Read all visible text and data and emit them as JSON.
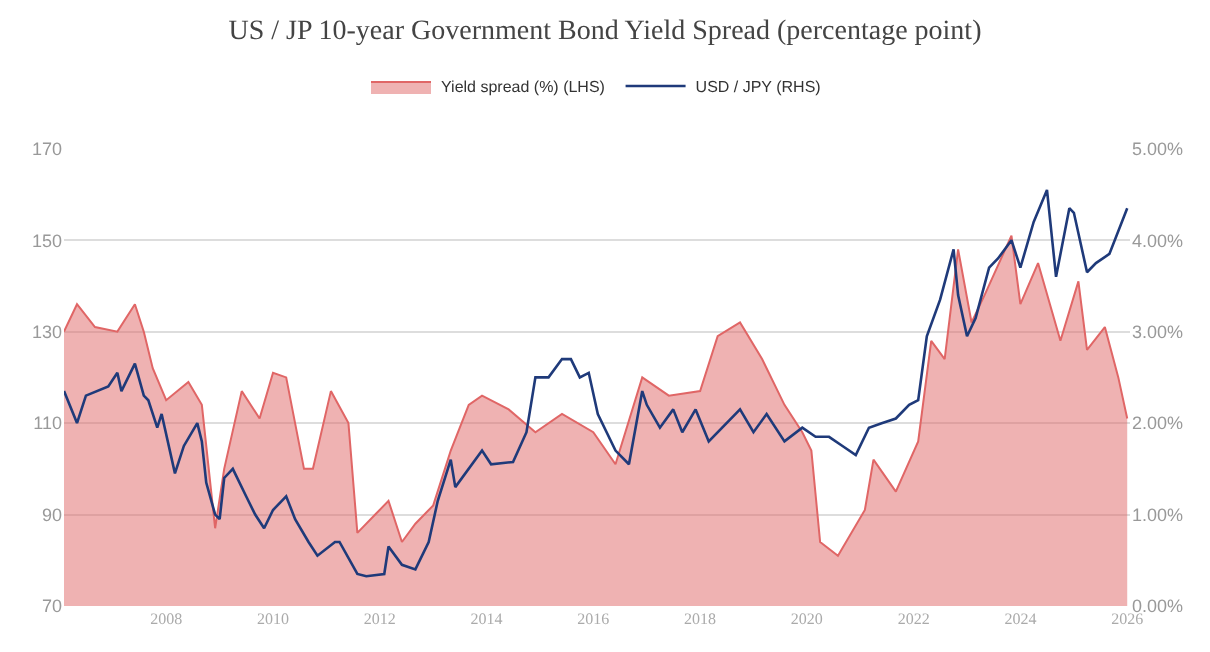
{
  "chart_data": {
    "type": "line",
    "title": "US / JP 10-year Government Bond Yield Spread (percentage point)",
    "xlim": [
      "2006-02-01",
      "2026-01-20"
    ],
    "xticks": [
      {
        "value": "2008-01-01",
        "label": "2008"
      },
      {
        "value": "2010-01-01",
        "label": "2010"
      },
      {
        "value": "2012-01-01",
        "label": "2012"
      },
      {
        "value": "2014-01-01",
        "label": "2014"
      },
      {
        "value": "2016-01-01",
        "label": "2016"
      },
      {
        "value": "2018-01-01",
        "label": "2018"
      },
      {
        "value": "2020-01-01",
        "label": "2020"
      },
      {
        "value": "2022-01-01",
        "label": "2022"
      },
      {
        "value": "2024-01-01",
        "label": "2024"
      },
      {
        "value": "2026-01-01",
        "label": "2026"
      }
    ],
    "ylim": [
      70,
      170
    ],
    "yticks": [
      70,
      90,
      110,
      130,
      150,
      170
    ],
    "y2lim": [
      0,
      5
    ],
    "y2ticks": [
      {
        "value": 0,
        "label": "0.00%"
      },
      {
        "value": 1,
        "label": "1.00%"
      },
      {
        "value": 2,
        "label": "2.00%"
      },
      {
        "value": 3,
        "label": "3.00%"
      },
      {
        "value": 4,
        "label": "4.00%"
      },
      {
        "value": 5,
        "label": "5.00%"
      }
    ],
    "grid": "y",
    "legend": "top",
    "series": [
      {
        "name": "Yield spread (%) (LHS)",
        "type": "area",
        "axis": "y2",
        "color": "#e06666",
        "x": [
          "2006-02",
          "2006-05",
          "2006-09",
          "2007-02",
          "2007-06",
          "2007-08",
          "2007-10",
          "2008-01",
          "2008-06",
          "2008-09",
          "2008-12",
          "2009-02",
          "2009-06",
          "2009-10",
          "2010-01",
          "2010-04",
          "2010-08",
          "2010-10",
          "2011-02",
          "2011-06",
          "2011-08",
          "2011-12",
          "2012-03",
          "2012-06",
          "2012-09",
          "2013-01",
          "2013-05",
          "2013-09",
          "2013-12",
          "2014-06",
          "2014-12",
          "2015-06",
          "2016-01",
          "2016-06",
          "2016-12",
          "2017-06",
          "2018-01",
          "2018-05",
          "2018-10",
          "2019-03",
          "2019-08",
          "2019-12",
          "2020-02",
          "2020-04",
          "2020-08",
          "2021-02",
          "2021-04",
          "2021-09",
          "2022-02",
          "2022-05",
          "2022-08",
          "2022-11",
          "2023-02",
          "2023-05",
          "2023-11",
          "2024-01",
          "2024-05",
          "2024-10",
          "2025-02",
          "2025-04",
          "2025-08",
          "2025-11",
          "2026-01"
        ],
        "values": [
          3.0,
          3.3,
          3.05,
          3.0,
          3.3,
          3.0,
          2.6,
          2.25,
          2.45,
          2.2,
          0.85,
          1.5,
          2.35,
          2.05,
          2.55,
          2.5,
          1.5,
          1.5,
          2.35,
          2.0,
          0.8,
          1.0,
          1.15,
          0.7,
          0.9,
          1.1,
          1.7,
          2.2,
          2.3,
          2.15,
          1.9,
          2.1,
          1.9,
          1.55,
          2.5,
          2.3,
          2.35,
          2.95,
          3.1,
          2.7,
          2.2,
          1.9,
          1.7,
          0.7,
          0.55,
          1.05,
          1.6,
          1.25,
          1.8,
          2.9,
          2.7,
          3.9,
          3.1,
          3.4,
          4.05,
          3.3,
          3.75,
          2.9,
          3.55,
          2.8,
          3.05,
          2.5,
          2.05
        ]
      },
      {
        "name": "USD / JPY (RHS)",
        "axis": "y",
        "color": "#1f3a7a",
        "x": [
          "2006-02",
          "2006-05",
          "2006-07",
          "2006-12",
          "2007-02",
          "2007-03",
          "2007-06",
          "2007-08",
          "2007-09",
          "2007-11",
          "2007-12",
          "2008-03",
          "2008-05",
          "2008-08",
          "2008-09",
          "2008-10",
          "2008-12",
          "2009-01",
          "2009-02",
          "2009-04",
          "2009-07",
          "2009-09",
          "2009-11",
          "2010-01",
          "2010-04",
          "2010-06",
          "2010-09",
          "2010-11",
          "2011-03",
          "2011-04",
          "2011-08",
          "2011-10",
          "2012-02",
          "2012-03",
          "2012-06",
          "2012-09",
          "2012-12",
          "2013-02",
          "2013-05",
          "2013-06",
          "2013-12",
          "2014-02",
          "2014-07",
          "2014-10",
          "2014-12",
          "2015-03",
          "2015-06",
          "2015-08",
          "2015-10",
          "2015-12",
          "2016-02",
          "2016-06",
          "2016-09",
          "2016-12",
          "2017-01",
          "2017-04",
          "2017-07",
          "2017-09",
          "2017-12",
          "2018-03",
          "2018-10",
          "2019-01",
          "2019-04",
          "2019-08",
          "2019-12",
          "2020-03",
          "2020-06",
          "2020-09",
          "2020-12",
          "2021-03",
          "2021-06",
          "2021-09",
          "2021-12",
          "2022-02",
          "2022-04",
          "2022-07",
          "2022-10",
          "2022-11",
          "2023-01",
          "2023-03",
          "2023-06",
          "2023-08",
          "2023-11",
          "2024-01",
          "2024-04",
          "2024-07",
          "2024-09",
          "2024-12",
          "2025-01",
          "2025-04",
          "2025-06",
          "2025-09",
          "2026-01"
        ],
        "values": [
          117,
          110,
          116,
          118,
          121,
          117,
          123,
          116,
          115,
          109,
          112,
          99,
          105,
          110,
          106,
          97,
          90,
          89,
          98,
          100,
          94,
          90,
          87,
          91,
          94,
          89,
          84,
          81,
          84,
          84,
          77,
          76.5,
          77,
          83,
          79,
          78,
          84,
          93,
          102,
          96,
          104,
          101,
          101.5,
          108,
          120,
          120,
          124,
          124,
          120,
          121,
          112,
          104,
          101,
          117,
          114,
          109,
          113,
          108,
          113,
          106,
          113,
          108,
          112,
          106,
          109,
          107,
          107,
          105,
          103,
          109,
          110,
          111,
          114,
          115,
          129,
          137,
          148,
          138,
          129,
          133,
          144,
          146,
          150,
          144,
          154,
          161,
          142,
          157,
          156,
          143,
          145,
          147,
          157
        ]
      }
    ]
  }
}
